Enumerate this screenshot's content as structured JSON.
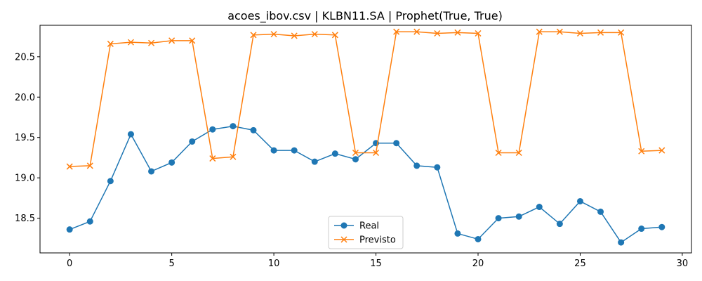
{
  "chart_data": {
    "type": "line",
    "title": "acoes_ibov.csv | KLBN11.SA | Prophet(True, True)",
    "xlabel": "",
    "ylabel": "",
    "xlim": [
      -1.45,
      30.45
    ],
    "ylim": [
      18.07,
      20.89
    ],
    "xticks": [
      0,
      5,
      10,
      15,
      20,
      25,
      30
    ],
    "yticks": [
      18.5,
      19.0,
      19.5,
      20.0,
      20.5
    ],
    "ytick_labels": [
      "18.5",
      "19.0",
      "19.5",
      "20.0",
      "20.5"
    ],
    "grid": false,
    "legend_position": "lower-center",
    "x": [
      0,
      1,
      2,
      3,
      4,
      5,
      6,
      7,
      8,
      9,
      10,
      11,
      12,
      13,
      14,
      15,
      16,
      17,
      18,
      19,
      20,
      21,
      22,
      23,
      24,
      25,
      26,
      27,
      28,
      29
    ],
    "series": [
      {
        "name": "Real",
        "color": "#1f77b4",
        "marker": "circle",
        "values": [
          18.36,
          18.46,
          18.96,
          19.54,
          19.08,
          19.19,
          19.45,
          19.6,
          19.64,
          19.59,
          19.34,
          19.34,
          19.2,
          19.3,
          19.23,
          19.43,
          19.43,
          19.15,
          19.13,
          18.31,
          18.24,
          18.5,
          18.52,
          18.64,
          18.43,
          18.71,
          18.58,
          18.2,
          18.37,
          18.39
        ]
      },
      {
        "name": "Previsto",
        "color": "#ff7f0e",
        "marker": "x",
        "values": [
          19.14,
          19.15,
          20.66,
          20.68,
          20.67,
          20.7,
          20.7,
          19.24,
          19.26,
          20.77,
          20.78,
          20.76,
          20.78,
          20.77,
          19.31,
          19.31,
          20.81,
          20.81,
          20.79,
          20.8,
          20.79,
          19.31,
          19.31,
          20.81,
          20.81,
          20.79,
          20.8,
          20.8,
          19.33,
          19.34
        ]
      }
    ]
  }
}
